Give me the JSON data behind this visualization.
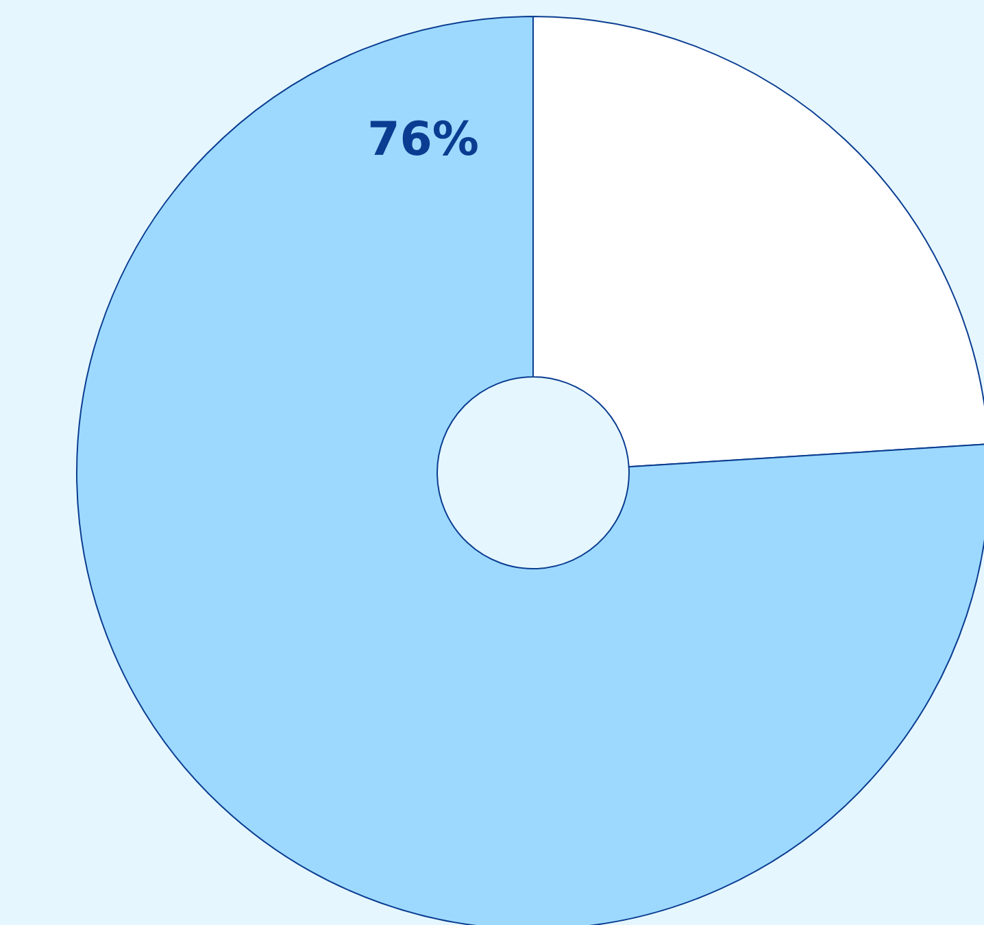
{
  "chart_data": {
    "type": "donut",
    "categories": [
      null,
      null
    ],
    "values": [
      24,
      76
    ],
    "colors": [
      "#ffffff",
      "#9dd9ff"
    ],
    "value_labels": [
      null,
      "76%"
    ]
  }
}
